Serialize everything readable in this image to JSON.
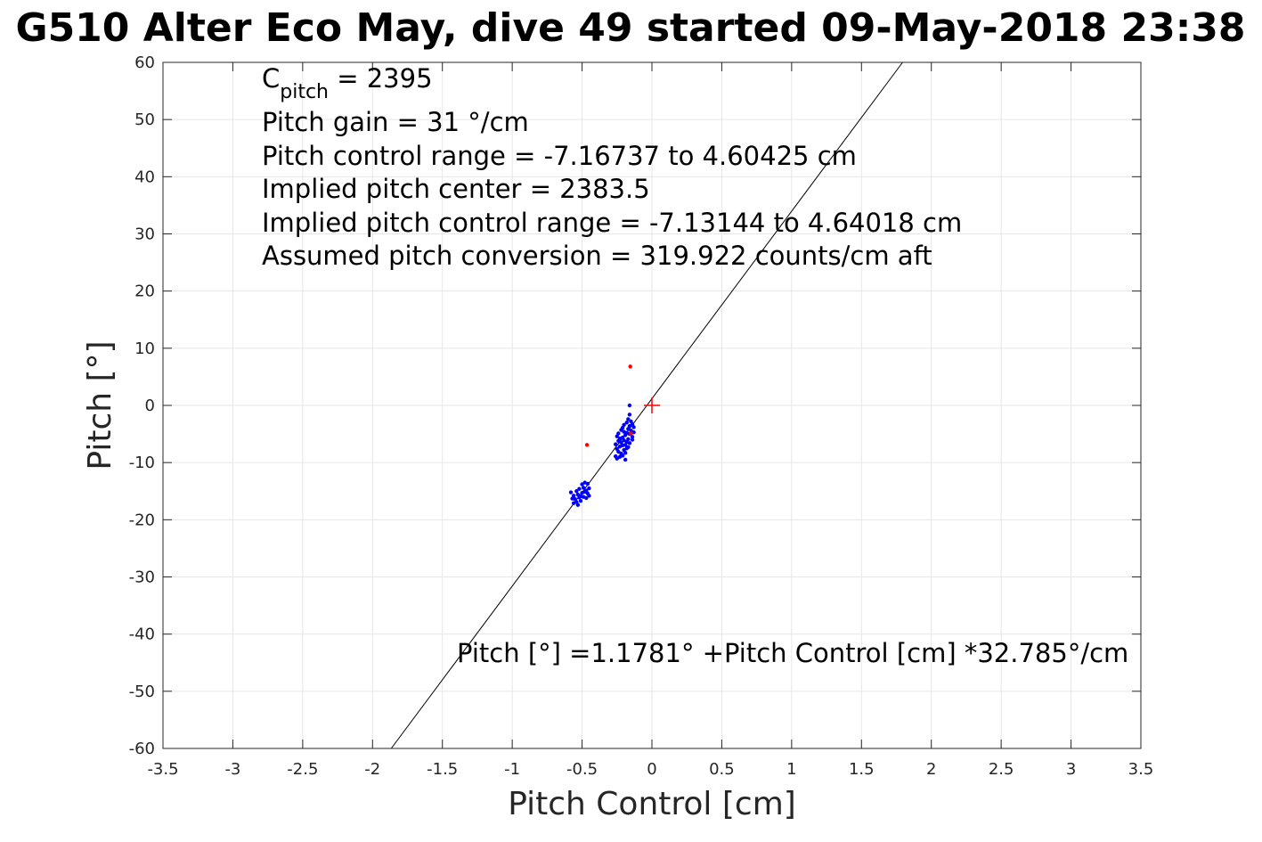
{
  "chart_data": {
    "type": "scatter",
    "title": "G510 Alter Eco May, dive 49 started 09-May-2018 23:38",
    "xlabel": "Pitch Control [cm]",
    "ylabel": "Pitch [°]",
    "xlim": [
      -3.5,
      3.5
    ],
    "ylim": [
      -60,
      60
    ],
    "grid": true,
    "x_ticks": [
      -3.5,
      -3,
      -2.5,
      -2,
      -1.5,
      -1,
      -0.5,
      0,
      0.5,
      1,
      1.5,
      2,
      2.5,
      3,
      3.5
    ],
    "x_tick_labels": [
      "-3.5",
      "-3",
      "-2.5",
      "-2",
      "-1.5",
      "-1",
      "-0.5",
      "0",
      "0.5",
      "1",
      "1.5",
      "2",
      "2.5",
      "3",
      "3.5"
    ],
    "y_ticks": [
      60,
      50,
      40,
      30,
      20,
      10,
      0,
      -10,
      -20,
      -30,
      -40,
      -50,
      -60
    ],
    "y_tick_labels": [
      "60",
      "50",
      "40",
      "30",
      "20",
      "10",
      "0",
      "-10",
      "-20",
      "-30",
      "-40",
      "-50",
      "-60"
    ],
    "annotations": {
      "c_pitch_main": "C",
      "c_pitch_sub": "pitch",
      "c_pitch_value": " = 2395",
      "pitch_gain": "Pitch gain = 31 °/cm",
      "control_range": "Pitch control range = -7.16737 to 4.60425 cm",
      "implied_center": "Implied pitch center = 2383.5",
      "implied_range": "Implied pitch control range = -7.13144 to 4.64018 cm",
      "conversion": "Assumed pitch conversion = 319.922 counts/cm aft",
      "fit_equation": "Pitch [°] =1.1781° +Pitch Control [cm] *32.785°/cm"
    },
    "fit_line": {
      "intercept": 1.1781,
      "slope": 32.785,
      "color": "#000000"
    },
    "center_marker": {
      "x": 0,
      "y": 0,
      "color": "#ff0000",
      "symbol": "plus"
    },
    "series": [
      {
        "color": "#0000ff",
        "points": [
          [
            -0.58,
            -15.2
          ],
          [
            -0.57,
            -16.3
          ],
          [
            -0.56,
            -15.8
          ],
          [
            -0.56,
            -17.1
          ],
          [
            -0.55,
            -16.4
          ],
          [
            -0.54,
            -15.0
          ],
          [
            -0.54,
            -16.9
          ],
          [
            -0.53,
            -15.6
          ],
          [
            -0.53,
            -17.4
          ],
          [
            -0.52,
            -16.1
          ],
          [
            -0.52,
            -14.6
          ],
          [
            -0.51,
            -15.9
          ],
          [
            -0.51,
            -16.7
          ],
          [
            -0.5,
            -13.8
          ],
          [
            -0.5,
            -15.3
          ],
          [
            -0.49,
            -16.0
          ],
          [
            -0.49,
            -14.4
          ],
          [
            -0.48,
            -15.1
          ],
          [
            -0.48,
            -13.5
          ],
          [
            -0.47,
            -14.9
          ],
          [
            -0.47,
            -16.2
          ],
          [
            -0.46,
            -15.4
          ],
          [
            -0.46,
            -13.7
          ],
          [
            -0.45,
            -14.5
          ],
          [
            -0.45,
            -15.8
          ],
          [
            -0.26,
            -6.8
          ],
          [
            -0.26,
            -8.9
          ],
          [
            -0.25,
            -5.4
          ],
          [
            -0.25,
            -7.6
          ],
          [
            -0.25,
            -9.3
          ],
          [
            -0.24,
            -4.9
          ],
          [
            -0.24,
            -6.2
          ],
          [
            -0.24,
            -8.1
          ],
          [
            -0.23,
            -5.8
          ],
          [
            -0.23,
            -7.2
          ],
          [
            -0.23,
            -9.0
          ],
          [
            -0.22,
            -4.3
          ],
          [
            -0.22,
            -6.5
          ],
          [
            -0.22,
            -8.4
          ],
          [
            -0.21,
            -3.9
          ],
          [
            -0.21,
            -5.6
          ],
          [
            -0.21,
            -7.0
          ],
          [
            -0.21,
            -8.8
          ],
          [
            -0.2,
            -4.6
          ],
          [
            -0.2,
            -6.1
          ],
          [
            -0.2,
            -7.8
          ],
          [
            -0.2,
            -3.4
          ],
          [
            -0.19,
            -5.2
          ],
          [
            -0.19,
            -6.9
          ],
          [
            -0.19,
            -8.3
          ],
          [
            -0.19,
            -9.5
          ],
          [
            -0.18,
            -3.0
          ],
          [
            -0.18,
            -4.8
          ],
          [
            -0.18,
            -6.4
          ],
          [
            -0.18,
            -7.5
          ],
          [
            -0.17,
            -2.4
          ],
          [
            -0.17,
            -4.1
          ],
          [
            -0.17,
            -5.9
          ],
          [
            -0.17,
            -7.3
          ],
          [
            -0.16,
            -1.6
          ],
          [
            -0.16,
            -3.6
          ],
          [
            -0.16,
            -5.0
          ],
          [
            -0.16,
            -6.6
          ],
          [
            -0.16,
            0.0
          ],
          [
            -0.15,
            -2.8
          ],
          [
            -0.15,
            -4.4
          ],
          [
            -0.14,
            -3.3
          ],
          [
            -0.14,
            -5.5
          ],
          [
            -0.14,
            -6.0
          ],
          [
            -0.13,
            -3.8
          ],
          [
            -0.13,
            -4.7
          ]
        ]
      },
      {
        "color": "#ff0000",
        "points": [
          [
            -0.155,
            6.8
          ],
          [
            -0.465,
            -6.9
          ],
          [
            -0.15,
            -4.9
          ]
        ]
      }
    ]
  }
}
